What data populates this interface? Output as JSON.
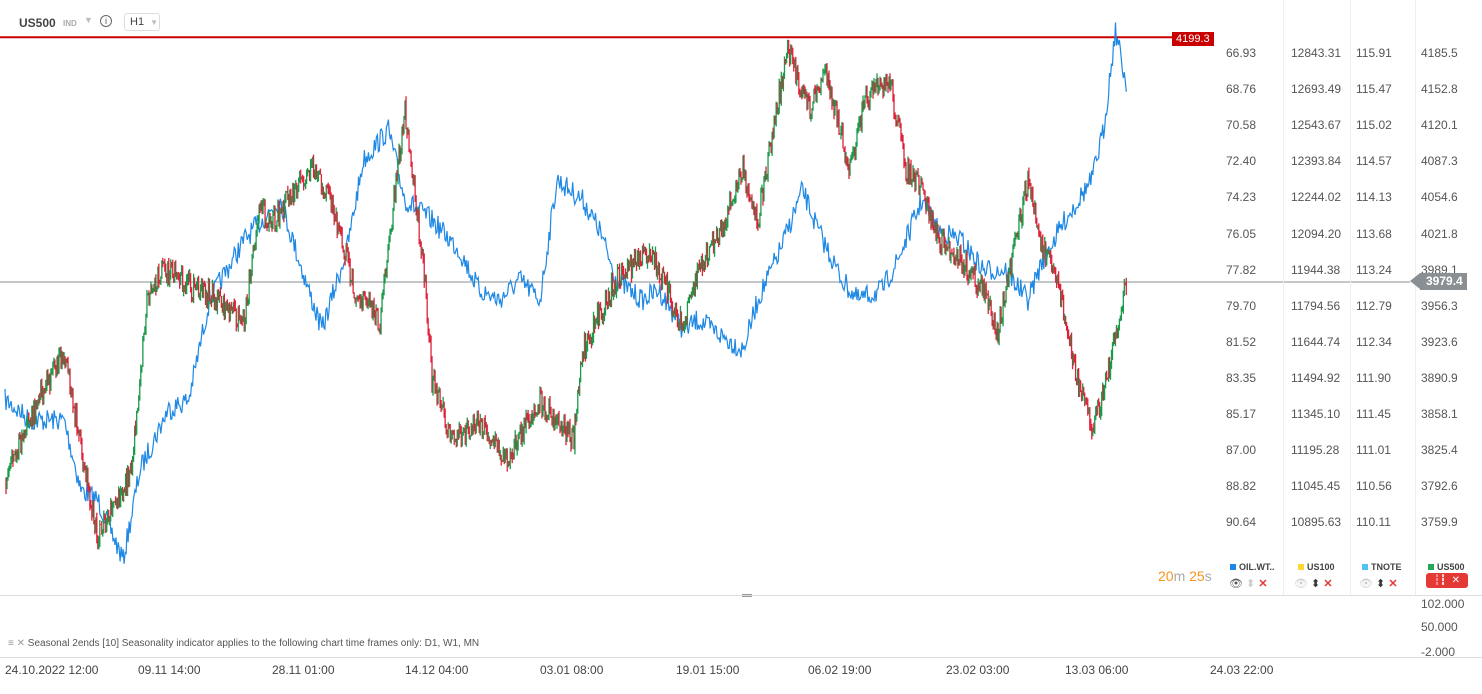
{
  "header": {
    "symbol": "US500",
    "type": "IND",
    "timeframe": "H1",
    "info_icon": "info-icon"
  },
  "levels": {
    "resistance": "4199.3",
    "current": "3979.4"
  },
  "axes": {
    "oil": [
      "66.93",
      "68.76",
      "70.58",
      "72.40",
      "74.23",
      "76.05",
      "77.82",
      "79.70",
      "81.52",
      "83.35",
      "85.17",
      "87.00",
      "88.82",
      "90.64"
    ],
    "us100": [
      "12843.31",
      "12693.49",
      "12543.67",
      "12393.84",
      "12244.02",
      "12094.20",
      "11944.38",
      "11794.56",
      "11644.74",
      "11494.92",
      "11345.10",
      "11195.28",
      "11045.45",
      "10895.63"
    ],
    "tnote": [
      "115.91",
      "115.47",
      "115.02",
      "114.57",
      "114.13",
      "113.68",
      "113.24",
      "112.79",
      "112.34",
      "111.90",
      "111.45",
      "111.01",
      "110.56",
      "110.11"
    ],
    "us500": [
      "4185.5",
      "4152.8",
      "4120.1",
      "4087.3",
      "4054.6",
      "4021.8",
      "3989.1",
      "3956.3",
      "3923.6",
      "3890.9",
      "3858.1",
      "3825.4",
      "3792.6",
      "3759.9"
    ]
  },
  "timer": {
    "m": "20",
    "m_unit": "m",
    "s": "25",
    "s_unit": "s"
  },
  "legend": [
    {
      "label": "OIL.WT..",
      "color": "#1e88e5"
    },
    {
      "label": "US100",
      "color": "#fdd835"
    },
    {
      "label": "TNOTE",
      "color": "#4fc3f7"
    },
    {
      "label": "US500",
      "color": "#26a65b"
    }
  ],
  "indicator": {
    "text": "Seasonal 2ends [10] Seasonality indicator applies to the following chart time frames only: D1, W1, MN",
    "ticks": [
      "102.000",
      "50.000",
      "-2.000"
    ]
  },
  "xaxis": [
    "24.10.2022  12:00",
    "09.11  14:00",
    "28.11  01:00",
    "14.12  04:00",
    "03.01  08:00",
    "19.01  15:00",
    "06.02  19:00",
    "23.02  03:00",
    "13.03  06:00",
    "24.03  22:00"
  ],
  "colors": {
    "up": "#1a9a4a",
    "down": "#e0213a",
    "oil": "#1e88e5",
    "resistance": "#c80000",
    "current": "#8a8f93"
  },
  "chart_data": {
    "type": "line",
    "series": [
      {
        "name": "US500",
        "style": "candles",
        "points": [
          [
            "2022-10-24",
            3798
          ],
          [
            "2022-10-28",
            3871
          ],
          [
            "2022-10-31",
            3916
          ],
          [
            "2022-11-04",
            3744
          ],
          [
            "2022-11-08",
            3807
          ],
          [
            "2022-11-10",
            3961
          ],
          [
            "2022-11-12",
            3989
          ],
          [
            "2022-11-18",
            3970
          ],
          [
            "2022-11-24",
            3943
          ],
          [
            "2022-11-26",
            4043
          ],
          [
            "2022-11-28",
            4034
          ],
          [
            "2022-12-03",
            4079
          ],
          [
            "2022-12-05",
            4052
          ],
          [
            "2022-12-08",
            3970
          ],
          [
            "2022-12-11",
            3943
          ],
          [
            "2022-12-14",
            4134
          ],
          [
            "2022-12-17",
            3980
          ],
          [
            "2022-12-18",
            3889
          ],
          [
            "2022-12-21",
            3834
          ],
          [
            "2022-12-25",
            3852
          ],
          [
            "2022-12-29",
            3816
          ],
          [
            "2023-01-03",
            3871
          ],
          [
            "2023-01-07",
            3834
          ],
          [
            "2023-01-08",
            3916
          ],
          [
            "2023-01-12",
            3980
          ],
          [
            "2023-01-16",
            4007
          ],
          [
            "2023-01-20",
            3934
          ],
          [
            "2023-01-22",
            3989
          ],
          [
            "2023-01-25",
            4025
          ],
          [
            "2023-01-28",
            4079
          ],
          [
            "2023-01-30",
            4034
          ],
          [
            "2023-02-02",
            4152
          ],
          [
            "2023-02-03",
            4188
          ],
          [
            "2023-02-06",
            4134
          ],
          [
            "2023-02-08",
            4170
          ],
          [
            "2023-02-11",
            4079
          ],
          [
            "2023-02-13",
            4143
          ],
          [
            "2023-02-16",
            4161
          ],
          [
            "2023-02-18",
            4079
          ],
          [
            "2023-02-20",
            4061
          ],
          [
            "2023-02-22",
            4016
          ],
          [
            "2023-02-25",
            3998
          ],
          [
            "2023-02-28",
            3970
          ],
          [
            "2023-03-02",
            3934
          ],
          [
            "2023-03-06",
            4070
          ],
          [
            "2023-03-08",
            4007
          ],
          [
            "2023-03-10",
            3980
          ],
          [
            "2023-03-12",
            3907
          ],
          [
            "2023-03-14",
            3843
          ],
          [
            "2023-03-15",
            3880
          ],
          [
            "2023-03-16",
            3925
          ],
          [
            "2023-03-17",
            3980
          ]
        ]
      },
      {
        "name": "OIL.WT..",
        "style": "line",
        "points": [
          [
            "2022-10-24",
            84.47
          ],
          [
            "2022-10-27",
            85.49
          ],
          [
            "2022-10-31",
            85.49
          ],
          [
            "2022-11-02",
            89.02
          ],
          [
            "2022-11-04",
            89.53
          ],
          [
            "2022-11-07",
            92.56
          ],
          [
            "2022-11-09",
            88.01
          ],
          [
            "2022-11-13",
            84.98
          ],
          [
            "2022-11-16",
            84.47
          ],
          [
            "2022-11-19",
            79.42
          ],
          [
            "2022-11-24",
            76.38
          ],
          [
            "2022-11-29",
            74.36
          ],
          [
            "2022-12-02",
            78.41
          ],
          [
            "2022-12-04",
            80.93
          ],
          [
            "2022-12-07",
            76.89
          ],
          [
            "2022-12-09",
            72.34
          ],
          [
            "2022-12-12",
            70.82
          ],
          [
            "2022-12-14",
            74.36
          ],
          [
            "2022-12-18",
            75.37
          ],
          [
            "2022-12-22",
            76.89
          ],
          [
            "2022-12-25",
            78.91
          ],
          [
            "2022-12-28",
            79.42
          ],
          [
            "2022-12-31",
            78.41
          ],
          [
            "2023-01-03",
            79.42
          ],
          [
            "2023-01-05",
            73.35
          ],
          [
            "2023-01-08",
            74.36
          ],
          [
            "2023-01-10",
            75.88
          ],
          [
            "2023-01-12",
            78.41
          ],
          [
            "2023-01-15",
            79.42
          ],
          [
            "2023-01-17",
            78.91
          ],
          [
            "2023-01-20",
            80.93
          ],
          [
            "2023-01-22",
            80.43
          ],
          [
            "2023-01-28",
            81.95
          ],
          [
            "2023-01-30",
            79.42
          ],
          [
            "2023-02-02",
            76.89
          ],
          [
            "2023-02-05",
            73.86
          ],
          [
            "2023-02-07",
            75.88
          ],
          [
            "2023-02-10",
            78.41
          ],
          [
            "2023-02-12",
            79.42
          ],
          [
            "2023-02-15",
            78.91
          ],
          [
            "2023-02-17",
            77.4
          ],
          [
            "2023-02-20",
            74.36
          ],
          [
            "2023-02-22",
            75.88
          ],
          [
            "2023-02-25",
            76.38
          ],
          [
            "2023-02-28",
            77.9
          ],
          [
            "2023-03-03",
            77.9
          ],
          [
            "2023-03-06",
            79.42
          ],
          [
            "2023-03-08",
            77.4
          ],
          [
            "2023-03-11",
            75.37
          ],
          [
            "2023-03-14",
            73.35
          ],
          [
            "2023-03-15",
            70.82
          ],
          [
            "2023-03-16",
            65.77
          ],
          [
            "2023-03-17",
            68.8
          ]
        ]
      }
    ],
    "y_axes": {
      "US500": [
        3759.9,
        4185.5
      ],
      "OIL.WT..": [
        90.64,
        66.93
      ],
      "oil_inverted": true
    },
    "horizontal_lines": [
      {
        "value": 4199.3,
        "color": "#c80000"
      },
      {
        "value": 3979.4,
        "color": "#8a8f93"
      }
    ]
  }
}
